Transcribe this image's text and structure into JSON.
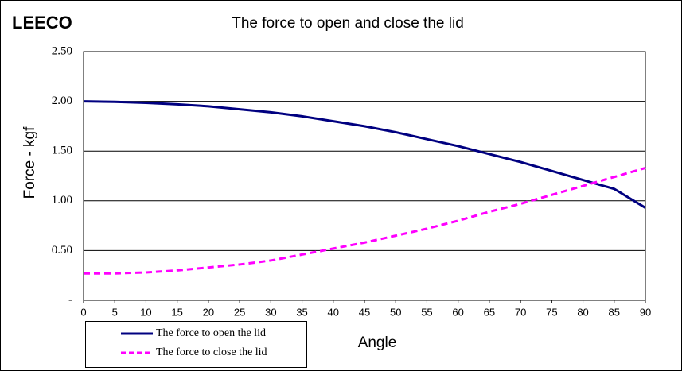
{
  "logo": "LEECO",
  "chart_data": {
    "type": "line",
    "title": "The force to open and close the lid",
    "x_label": "Angle",
    "y_label": "Force - kgf",
    "x": [
      0,
      5,
      10,
      15,
      20,
      25,
      30,
      35,
      40,
      45,
      50,
      55,
      60,
      65,
      70,
      75,
      80,
      85,
      90
    ],
    "series": [
      {
        "name": "The force to open the lid",
        "color": "#000080",
        "dash": false,
        "values": [
          2.0,
          1.995,
          1.985,
          1.97,
          1.95,
          1.92,
          1.89,
          1.85,
          1.8,
          1.75,
          1.69,
          1.62,
          1.55,
          1.47,
          1.39,
          1.3,
          1.21,
          1.12,
          0.93
        ]
      },
      {
        "name": "The force to close the lid",
        "color": "#ff00ff",
        "dash": true,
        "values": [
          0.27,
          0.27,
          0.28,
          0.3,
          0.33,
          0.36,
          0.4,
          0.46,
          0.52,
          0.58,
          0.65,
          0.72,
          0.8,
          0.89,
          0.97,
          1.06,
          1.15,
          1.24,
          1.33
        ]
      }
    ],
    "xlim": [
      0,
      90
    ],
    "xticks": [
      0,
      5,
      10,
      15,
      20,
      25,
      30,
      35,
      40,
      45,
      50,
      55,
      60,
      65,
      70,
      75,
      80,
      85,
      90
    ],
    "ylim": [
      0,
      2.5
    ],
    "yticks": [
      {
        "value": 0,
        "label": "-"
      },
      {
        "value": 0.5,
        "label": "0.50"
      },
      {
        "value": 1,
        "label": "1.00"
      },
      {
        "value": 1.5,
        "label": "1.50"
      },
      {
        "value": 2,
        "label": "2.00"
      },
      {
        "value": 2.5,
        "label": "2.50"
      }
    ],
    "grid": true
  }
}
